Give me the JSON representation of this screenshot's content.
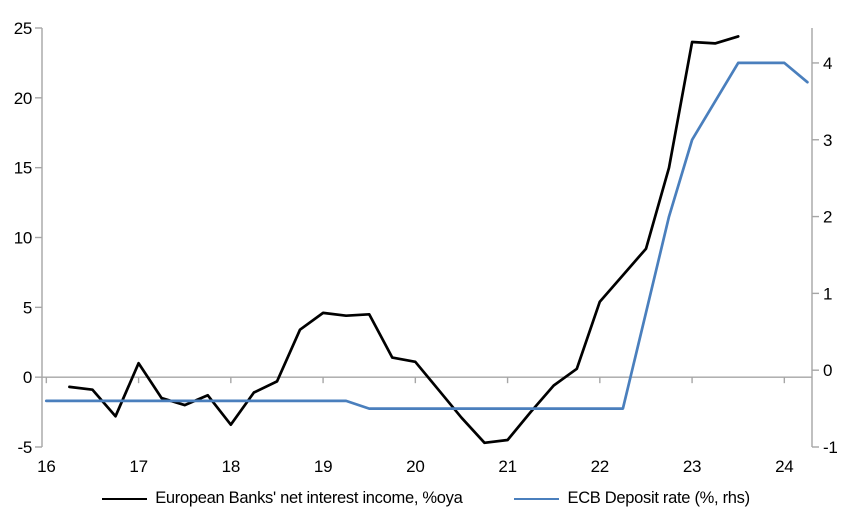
{
  "chart_data": {
    "type": "line",
    "title": "",
    "x_tick_values": [
      16,
      17,
      18,
      19,
      20,
      21,
      22,
      23,
      24
    ],
    "x_tick_labels": [
      "16",
      "17",
      "18",
      "19",
      "20",
      "21",
      "22",
      "23",
      "24"
    ],
    "x_range": [
      15.953,
      24.3
    ],
    "left_axis": {
      "ticks": [
        -5,
        0,
        5,
        10,
        15,
        20,
        25
      ],
      "tick_labels": [
        "-5",
        "0",
        "5",
        "10",
        "15",
        "20",
        "25"
      ],
      "range": [
        -5,
        25
      ]
    },
    "right_axis": {
      "ticks": [
        -1,
        0,
        1,
        2,
        3,
        4
      ],
      "tick_labels": [
        "-1",
        "0",
        "1",
        "2",
        "3",
        "4"
      ],
      "range": [
        -1,
        4.455
      ]
    },
    "grid": "zero-line-only",
    "legend_position": "bottom",
    "axis_color": "#a6a6a6",
    "series": [
      {
        "name": "European Banks' net interest income, %oya",
        "axis": "left",
        "color": "#000000",
        "x": [
          16.25,
          16.5,
          16.75,
          17.0,
          17.25,
          17.5,
          17.75,
          18.0,
          18.25,
          18.5,
          18.75,
          19.0,
          19.25,
          19.5,
          19.75,
          20.0,
          20.25,
          20.5,
          20.75,
          21.0,
          21.25,
          21.5,
          21.75,
          22.0,
          22.25,
          22.5,
          22.75,
          23.0,
          23.25,
          23.5
        ],
        "values": [
          -0.7,
          -0.9,
          -2.8,
          1.0,
          -1.5,
          -2.0,
          -1.3,
          -3.4,
          -1.1,
          -0.3,
          3.4,
          4.6,
          4.4,
          4.5,
          1.4,
          1.1,
          -0.9,
          -2.9,
          -4.7,
          -4.5,
          -2.5,
          -0.6,
          0.6,
          5.4,
          7.3,
          9.2,
          15.0,
          24.0,
          23.9,
          24.4
        ]
      },
      {
        "name": "ECB Deposit rate (%, rhs)",
        "axis": "right",
        "color": "#4a7fbd",
        "x": [
          16.0,
          16.25,
          16.5,
          16.75,
          17.0,
          17.25,
          17.5,
          17.75,
          18.0,
          18.25,
          18.5,
          18.75,
          19.0,
          19.25,
          19.5,
          19.75,
          20.0,
          20.25,
          20.5,
          20.75,
          21.0,
          21.25,
          21.5,
          21.75,
          22.0,
          22.25,
          22.5,
          22.75,
          23.0,
          23.25,
          23.5,
          23.75,
          24.0,
          24.25
        ],
        "values": [
          -0.4,
          -0.4,
          -0.4,
          -0.4,
          -0.4,
          -0.4,
          -0.4,
          -0.4,
          -0.4,
          -0.4,
          -0.4,
          -0.4,
          -0.4,
          -0.4,
          -0.5,
          -0.5,
          -0.5,
          -0.5,
          -0.5,
          -0.5,
          -0.5,
          -0.5,
          -0.5,
          -0.5,
          -0.5,
          -0.5,
          0.75,
          2.0,
          3.0,
          3.5,
          4.0,
          4.0,
          4.0,
          3.75
        ]
      }
    ]
  },
  "legend": {
    "items": [
      {
        "label": "European Banks' net interest income, %oya"
      },
      {
        "label": "ECB Deposit rate (%, rhs)"
      }
    ]
  }
}
